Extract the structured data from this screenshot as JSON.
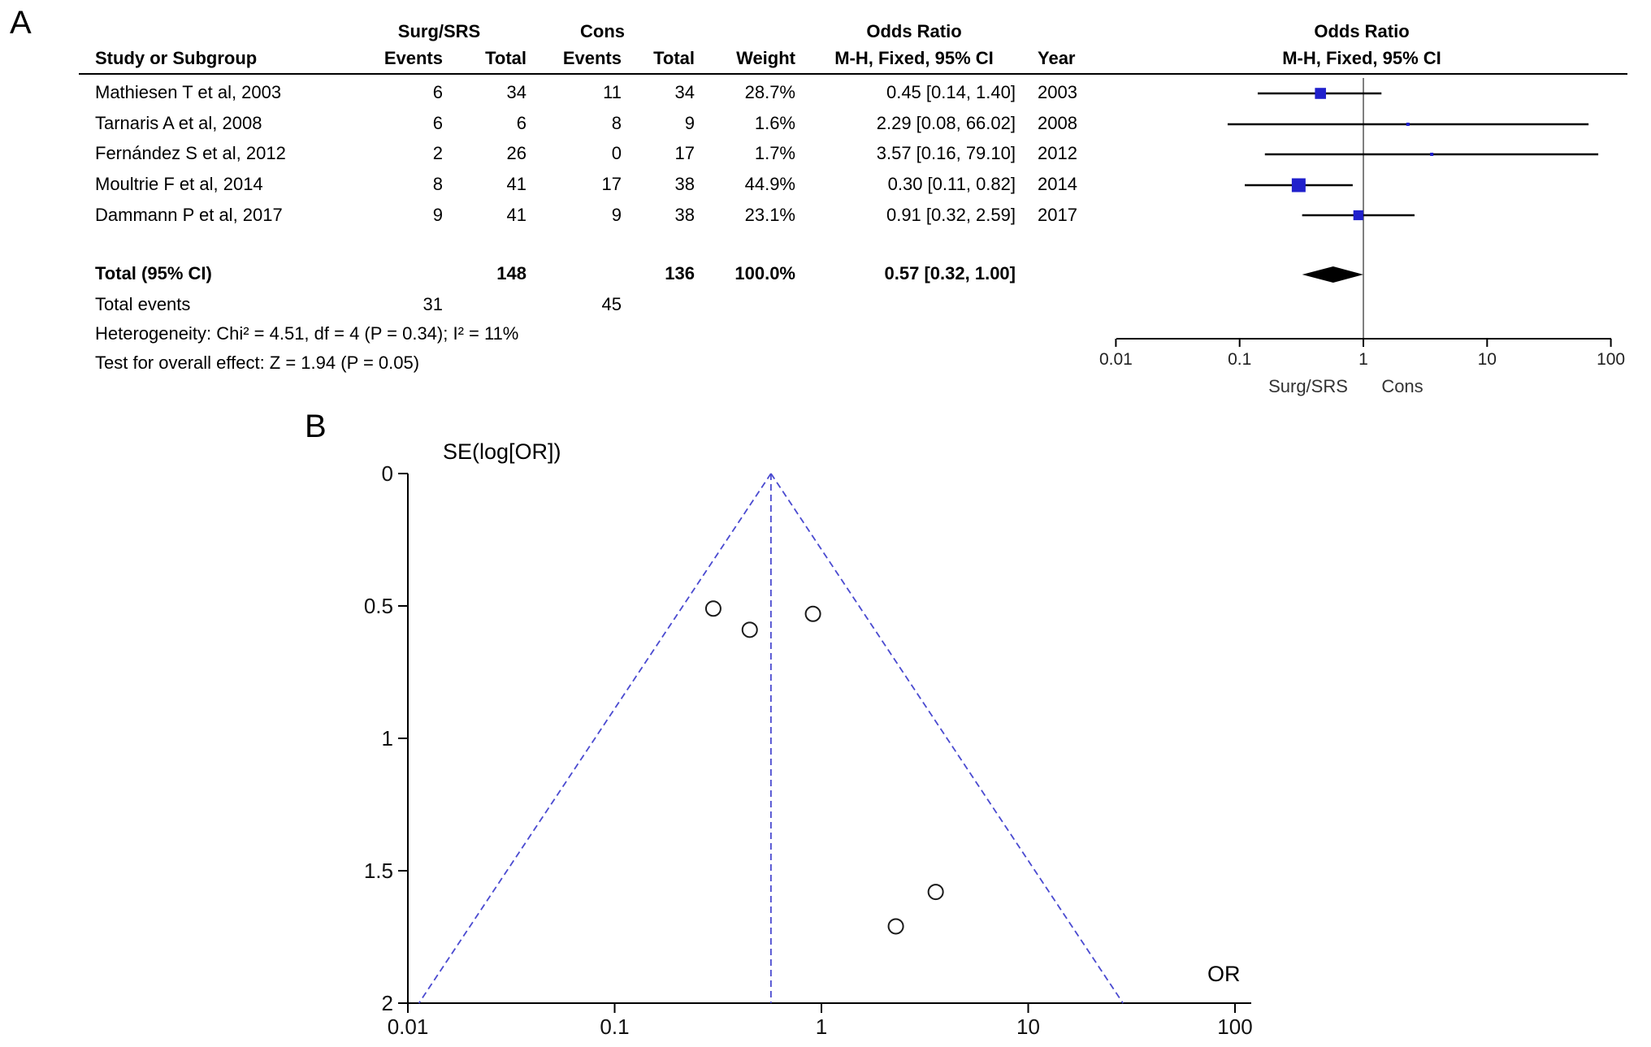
{
  "figure": {
    "panels": {
      "a_label": "A",
      "b_label": "B"
    }
  },
  "panel_a": {
    "header": {
      "group1": "Surg/SRS",
      "group2": "Cons",
      "odds_ratio_col": "Odds Ratio",
      "odds_ratio_plot": "Odds Ratio",
      "study": "Study or Subgroup",
      "events": "Events",
      "total": "Total",
      "weight": "Weight",
      "method_ci": "M-H, Fixed, 95% CI",
      "year": "Year"
    },
    "totals": {
      "label": "Total (95% CI)",
      "total1": "148",
      "total2": "136",
      "weight": "100.0%",
      "or_ci": "0.57 [0.32, 1.00]"
    },
    "total_events": {
      "label": "Total events",
      "events1": "31",
      "events2": "45"
    },
    "heterogeneity": "Heterogeneity: Chi² = 4.51, df = 4 (P = 0.34); I² = 11%",
    "overall_effect": "Test for overall effect: Z = 1.94 (P = 0.05)",
    "axis_labels": {
      "favours_left": "Surg/SRS",
      "favours_right": "Cons"
    }
  },
  "panel_b": {
    "ylabel": "SE(log[OR])",
    "xlabel": "OR"
  },
  "chart_data": [
    {
      "type": "forest",
      "panel": "A",
      "title": "Odds Ratio M-H, Fixed, 95% CI",
      "x_ticks": [
        0.01,
        0.1,
        1,
        10,
        100
      ],
      "x_scale": "log",
      "marker_color": "#2020cc",
      "diamond_color": "#000000",
      "studies": [
        {
          "name": "Mathiesen T et al, 2003",
          "events1": "6",
          "total1": "34",
          "events2": "11",
          "total2": "34",
          "weight_pct": 28.7,
          "or": 0.45,
          "ci_low": 0.14,
          "ci_high": 1.4,
          "or_ci_label": "0.45 [0.14, 1.40]",
          "year": "2003"
        },
        {
          "name": "Tarnaris A et al, 2008",
          "events1": "6",
          "total1": "6",
          "events2": "8",
          "total2": "9",
          "weight_pct": 1.6,
          "or": 2.29,
          "ci_low": 0.08,
          "ci_high": 66.02,
          "or_ci_label": "2.29 [0.08, 66.02]",
          "year": "2008"
        },
        {
          "name": "Fernández S et al, 2012",
          "events1": "2",
          "total1": "26",
          "events2": "0",
          "total2": "17",
          "weight_pct": 1.7,
          "or": 3.57,
          "ci_low": 0.16,
          "ci_high": 79.1,
          "or_ci_label": "3.57 [0.16, 79.10]",
          "year": "2012"
        },
        {
          "name": "Moultrie F et al, 2014",
          "events1": "8",
          "total1": "41",
          "events2": "17",
          "total2": "38",
          "weight_pct": 44.9,
          "or": 0.3,
          "ci_low": 0.11,
          "ci_high": 0.82,
          "or_ci_label": "0.30 [0.11, 0.82]",
          "year": "2014"
        },
        {
          "name": "Dammann P et al, 2017",
          "events1": "9",
          "total1": "41",
          "events2": "9",
          "total2": "38",
          "weight_pct": 23.1,
          "or": 0.91,
          "ci_low": 0.32,
          "ci_high": 2.59,
          "or_ci_label": "0.91 [0.32, 2.59]",
          "year": "2017"
        }
      ],
      "total": {
        "or": 0.57,
        "ci_low": 0.32,
        "ci_high": 1.0
      }
    },
    {
      "type": "scatter",
      "panel": "B",
      "xlabel": "OR",
      "ylabel": "SE(log[OR])",
      "x_scale": "log",
      "x_ticks": [
        0.01,
        0.1,
        1,
        10,
        100
      ],
      "y_ticks": [
        0,
        0.5,
        1,
        1.5,
        2
      ],
      "y_range": [
        0,
        2
      ],
      "y_inverted": true,
      "funnel_center_or": 0.57,
      "funnel_line_color": "#4a4ad0",
      "points": [
        {
          "or": 0.3,
          "se": 0.51
        },
        {
          "or": 0.45,
          "se": 0.59
        },
        {
          "or": 0.91,
          "se": 0.53
        },
        {
          "or": 2.29,
          "se": 1.71
        },
        {
          "or": 3.57,
          "se": 1.58
        }
      ]
    }
  ]
}
